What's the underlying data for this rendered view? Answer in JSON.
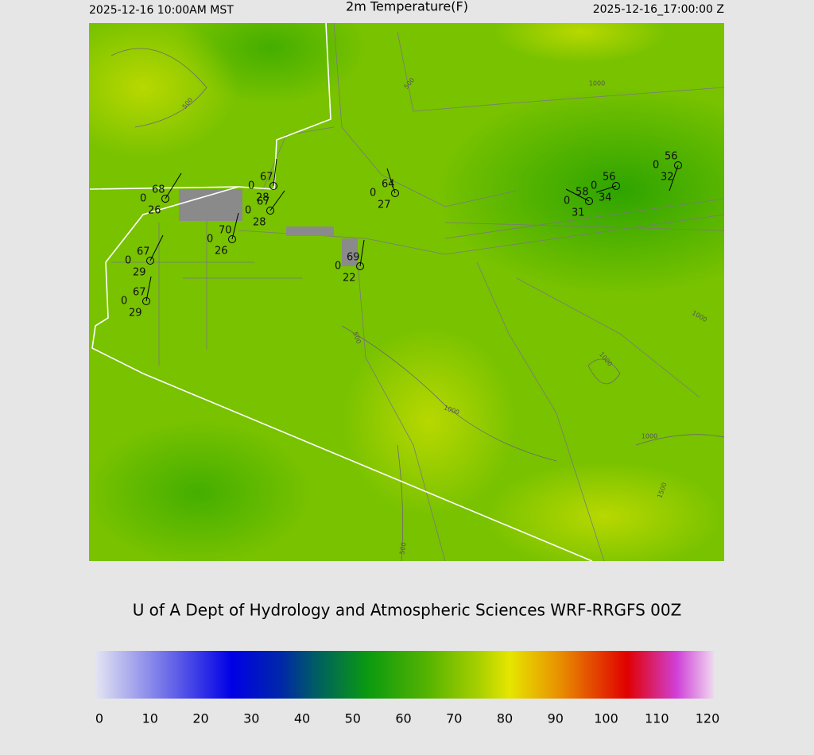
{
  "header": {
    "left": "2025-12-16 10:00AM MST",
    "title": "2m Temperature(F)",
    "right": "2025-12-16_17:00:00 Z"
  },
  "stations": [
    {
      "temperature": 68,
      "pressure": 0,
      "dewpoint": 26
    },
    {
      "temperature": 67,
      "pressure": 0,
      "dewpoint": 29
    },
    {
      "temperature": 67,
      "pressure": 0,
      "dewpoint": 29
    },
    {
      "temperature": 70,
      "pressure": 0,
      "dewpoint": 26
    },
    {
      "temperature": 67,
      "pressure": 0,
      "dewpoint": 28
    },
    {
      "temperature": 67,
      "pressure": 0,
      "dewpoint": 28
    },
    {
      "temperature": 69,
      "pressure": 0,
      "dewpoint": 22
    },
    {
      "temperature": 64,
      "pressure": 0,
      "dewpoint": 27
    },
    {
      "temperature": 58,
      "pressure": 0,
      "dewpoint": 31
    },
    {
      "temperature": 56,
      "pressure": 0,
      "dewpoint": 34
    },
    {
      "temperature": 56,
      "pressure": 0,
      "dewpoint": 32
    }
  ],
  "contour_labels": [
    "500",
    "500",
    "1000",
    "500",
    "1000",
    "1000",
    "1000",
    "1000",
    "1500",
    "500"
  ],
  "credit": "U of A Dept of Hydrology and Atmospheric Sciences WRF-RRGFS 00Z",
  "colorbar": {
    "ticks": [
      0,
      10,
      20,
      30,
      40,
      50,
      60,
      70,
      80,
      90,
      100,
      110,
      120
    ]
  }
}
